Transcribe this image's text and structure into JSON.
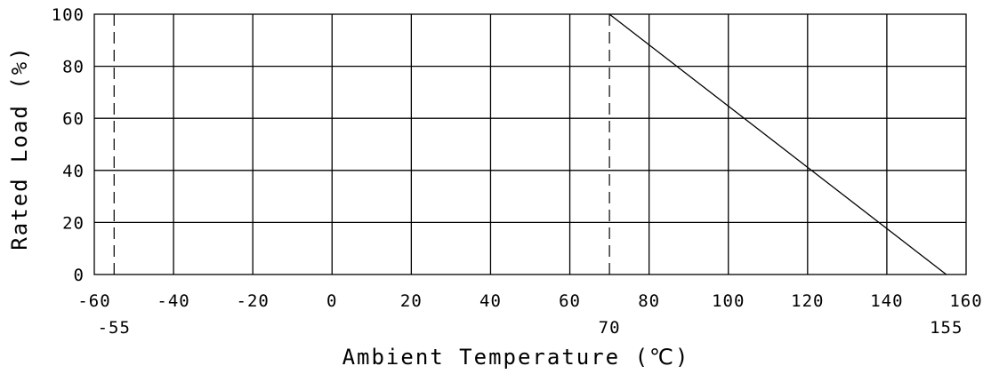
{
  "chart_data": {
    "type": "line",
    "xlabel": "Ambient Temperature (℃)",
    "ylabel": "Rated Load (%)",
    "xlim": [
      -60,
      160
    ],
    "ylim": [
      0,
      100
    ],
    "x_ticks": [
      -60,
      -40,
      -20,
      0,
      20,
      40,
      60,
      80,
      100,
      120,
      140,
      160
    ],
    "x_tick_labels": [
      "-60",
      "-40",
      "-20",
      "0",
      "20",
      "40",
      "60",
      "80",
      "100",
      "120",
      "140",
      "160"
    ],
    "y_ticks": [
      0,
      20,
      40,
      60,
      80,
      100
    ],
    "y_tick_labels": [
      "0",
      "20",
      "40",
      "60",
      "80",
      "100"
    ],
    "extra_x_marks": [
      {
        "x": -55,
        "label": "-55"
      },
      {
        "x": 70,
        "label": "70"
      },
      {
        "x": 155,
        "label": "155"
      }
    ],
    "grid": true,
    "series": [
      {
        "points": [
          {
            "x": 70,
            "y": 100
          },
          {
            "x": 155,
            "y": 0
          }
        ],
        "color": "#000000"
      }
    ],
    "dashed_verticals": [
      -55,
      70
    ]
  }
}
